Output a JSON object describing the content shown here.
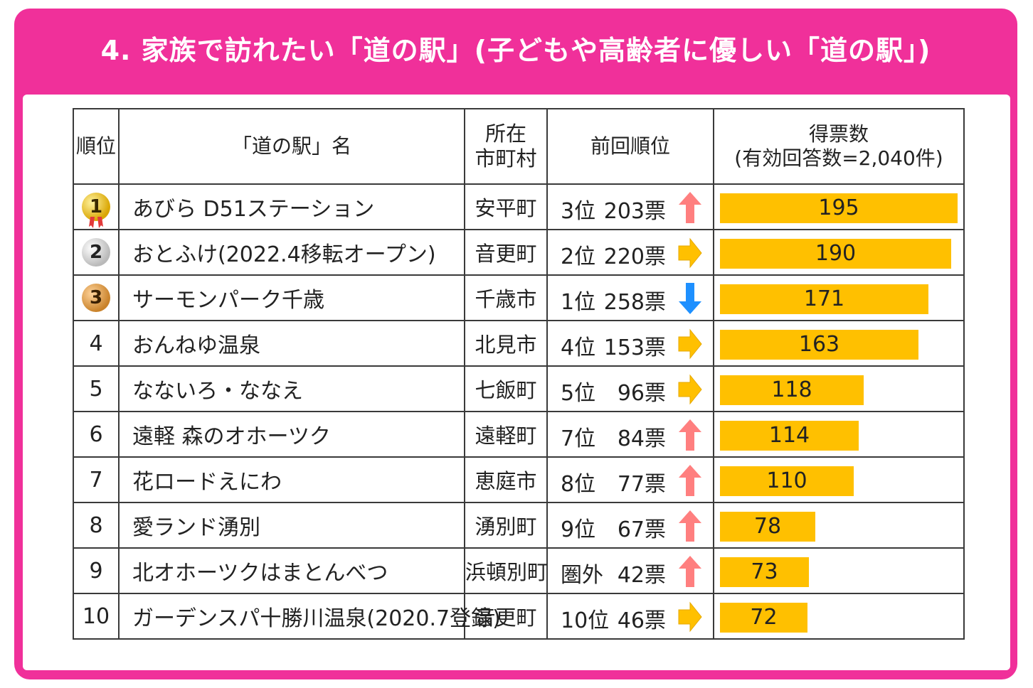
{
  "title": "4. 家族で訪れたい「道の駅」(子どもや高齢者に優しい「道の駅」)",
  "headers": {
    "rank": "順位",
    "name": "「道の駅」名",
    "municipality_line1": "所在",
    "municipality_line2": "市町村",
    "previous": "前回順位",
    "votes_line1": "得票数",
    "votes_line2": "(有効回答数=2,040件)"
  },
  "colors": {
    "frame": "#f0309a",
    "bar": "#ffc000",
    "up": "#ff7f7f",
    "flat": "#ffc000",
    "down": "#1e90ff"
  },
  "chart_data": {
    "type": "bar",
    "orientation": "horizontal",
    "title": "4. 家族で訪れたい「道の駅」(子どもや高齢者に優しい「道の駅」)",
    "categories": [
      "あびら D51ステーション",
      "おとふけ(2022.4移転オープン)",
      "サーモンパーク千歳",
      "おんねゆ温泉",
      "なないろ・ななえ",
      "遠軽 森のオホーツク",
      "花ロードえにわ",
      "愛ランド湧別",
      "北オホーツクはまとんべつ",
      "ガーデンスパ十勝川温泉(2020.7登録)"
    ],
    "series": [
      {
        "name": "得票数",
        "values": [
          195,
          190,
          171,
          163,
          118,
          114,
          110,
          78,
          73,
          72
        ]
      }
    ],
    "xlim": [
      0,
      200
    ],
    "grid": false
  },
  "rows": [
    {
      "rank": "1",
      "medal": "gold",
      "name": "あびら D51ステーション",
      "municipality": "安平町",
      "prev_rank": "3位",
      "prev_votes": "203票",
      "trend": "up",
      "votes": "195"
    },
    {
      "rank": "2",
      "medal": "silver",
      "name": "おとふけ(2022.4移転オープン)",
      "municipality": "音更町",
      "prev_rank": "2位",
      "prev_votes": "220票",
      "trend": "flat",
      "votes": "190"
    },
    {
      "rank": "3",
      "medal": "bronze",
      "name": "サーモンパーク千歳",
      "municipality": "千歳市",
      "prev_rank": "1位",
      "prev_votes": "258票",
      "trend": "down",
      "votes": "171"
    },
    {
      "rank": "4",
      "medal": "",
      "name": "おんねゆ温泉",
      "municipality": "北見市",
      "prev_rank": "4位",
      "prev_votes": "153票",
      "trend": "flat",
      "votes": "163"
    },
    {
      "rank": "5",
      "medal": "",
      "name": "なないろ・ななえ",
      "municipality": "七飯町",
      "prev_rank": "5位",
      "prev_votes": "96票",
      "trend": "flat",
      "votes": "118"
    },
    {
      "rank": "6",
      "medal": "",
      "name": "遠軽 森のオホーツク",
      "municipality": "遠軽町",
      "prev_rank": "7位",
      "prev_votes": "84票",
      "trend": "up",
      "votes": "114"
    },
    {
      "rank": "7",
      "medal": "",
      "name": "花ロードえにわ",
      "municipality": "恵庭市",
      "prev_rank": "8位",
      "prev_votes": "77票",
      "trend": "up",
      "votes": "110"
    },
    {
      "rank": "8",
      "medal": "",
      "name": "愛ランド湧別",
      "municipality": "湧別町",
      "prev_rank": "9位",
      "prev_votes": "67票",
      "trend": "up",
      "votes": "78"
    },
    {
      "rank": "9",
      "medal": "",
      "name": "北オホーツクはまとんべつ",
      "municipality": "浜頓別町",
      "prev_rank": "圏外",
      "prev_votes": "42票",
      "trend": "up",
      "votes": "73"
    },
    {
      "rank": "10",
      "medal": "",
      "name": "ガーデンスパ十勝川温泉(2020.7登録)",
      "municipality": "音更町",
      "prev_rank": "10位",
      "prev_votes": "46票",
      "trend": "flat",
      "votes": "72"
    }
  ]
}
